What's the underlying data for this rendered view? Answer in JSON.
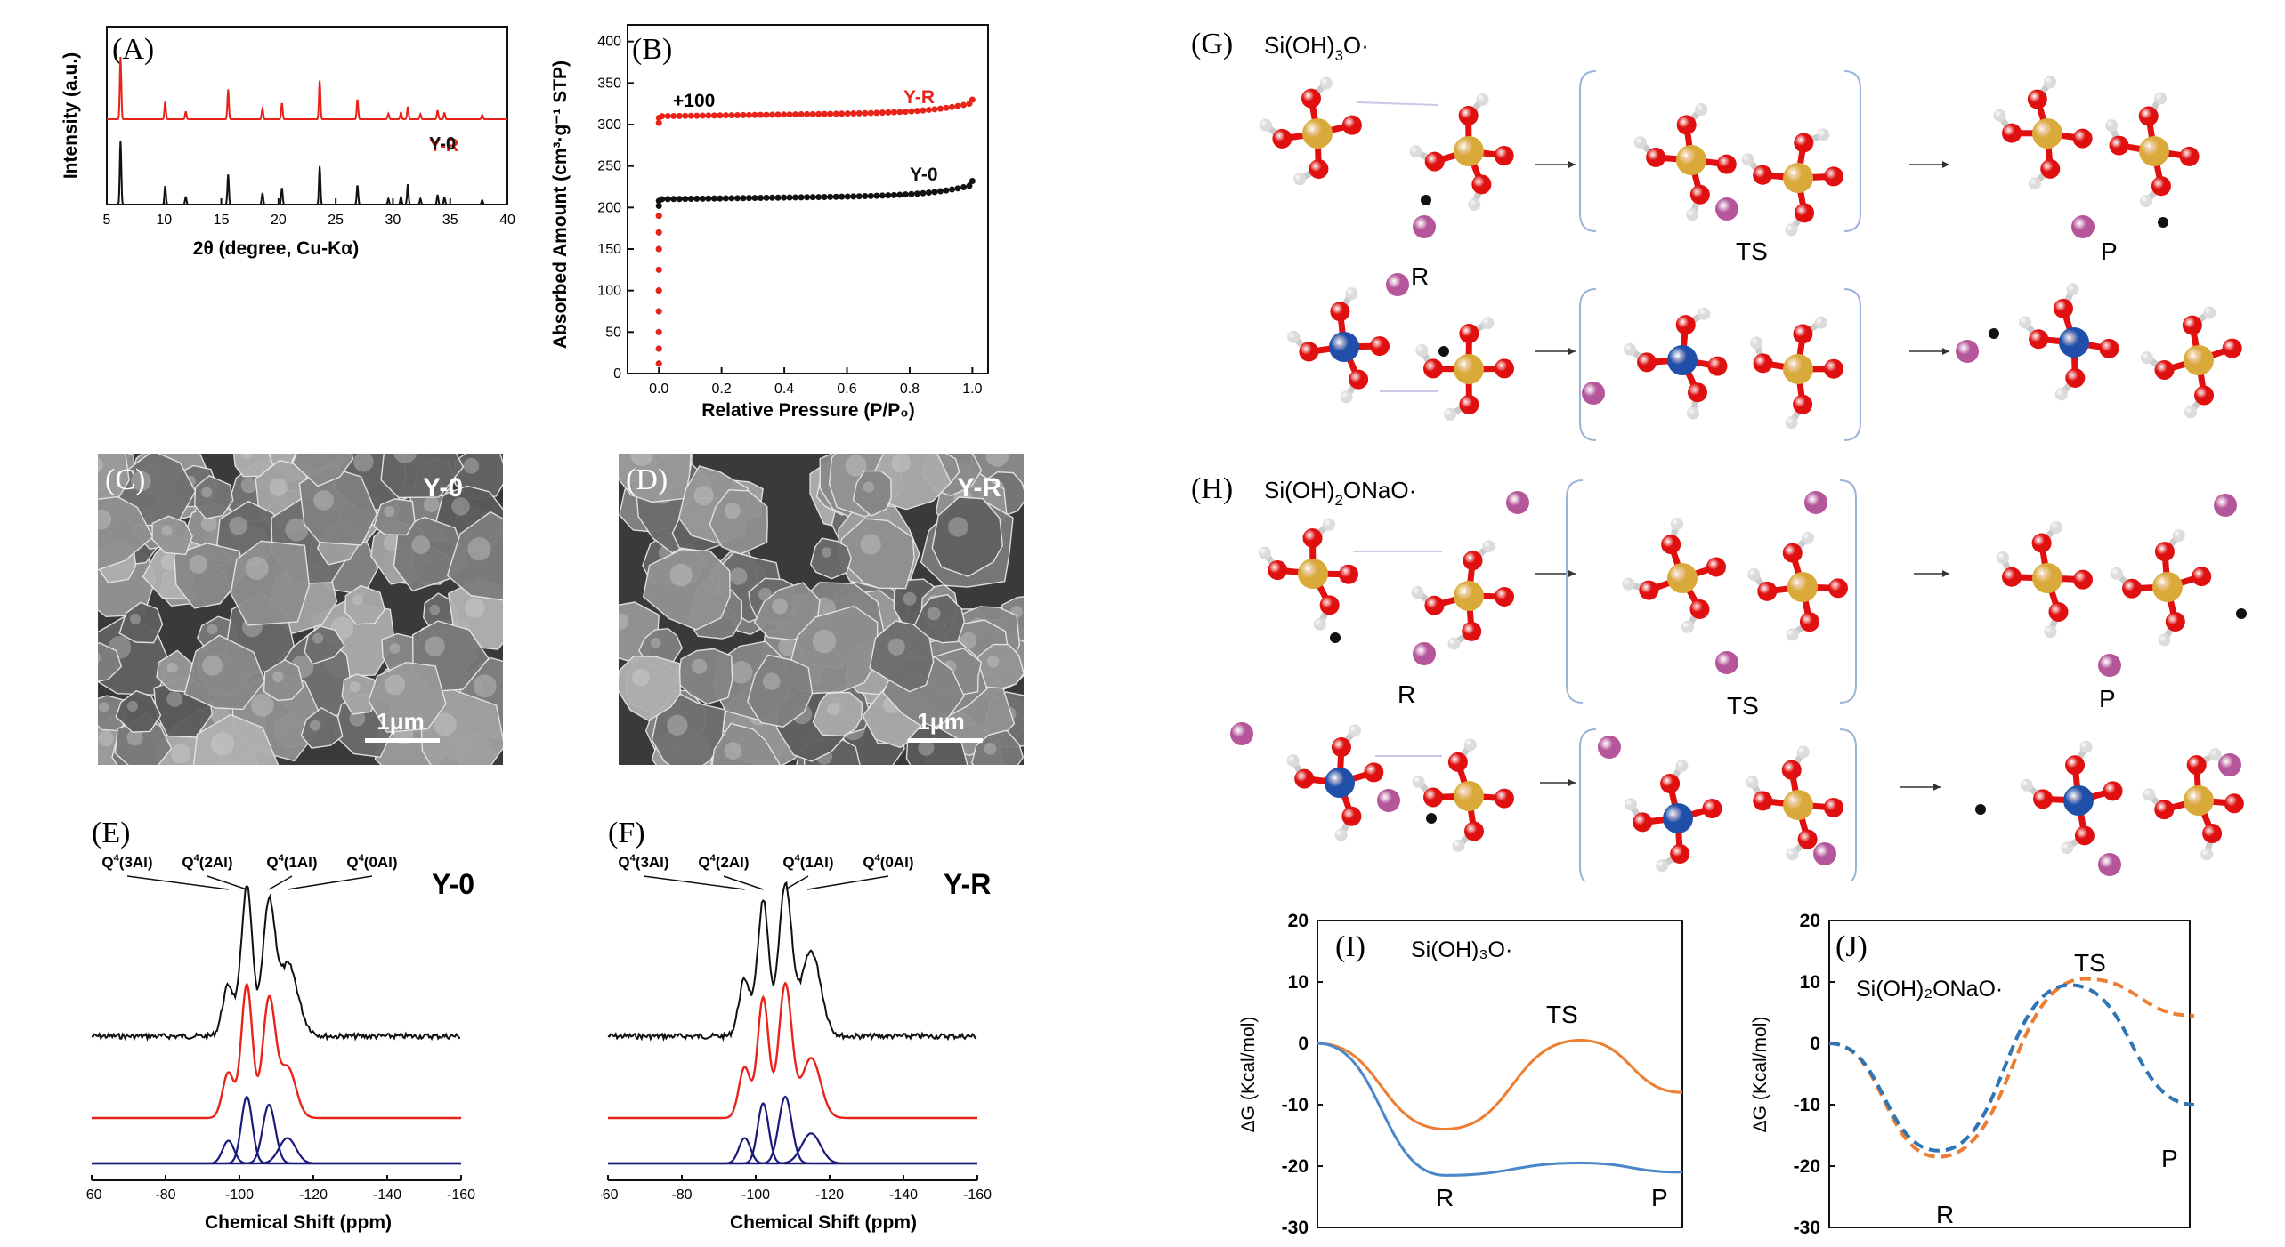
{
  "colors": {
    "red": "#e8231a",
    "black": "#111111",
    "navy": "#1a1a7a",
    "orange": "#ed7d31",
    "blue": "#4a86c8",
    "dashBlue": "#2e75b6",
    "gold": "#d9a93a",
    "oxygen": "#e01010",
    "hydrogen": "#dcdcdc",
    "aluminum": "#1f4fa8",
    "sodium": "#b5569a"
  },
  "panels": {
    "A": {
      "tag": "(A)"
    },
    "B": {
      "tag": "(B)"
    },
    "C": {
      "tag": "(C)"
    },
    "D": {
      "tag": "(D)"
    },
    "E": {
      "tag": "(E)"
    },
    "F": {
      "tag": "(F)"
    },
    "G": {
      "tag": "(G)"
    },
    "H": {
      "tag": "(H)"
    },
    "I": {
      "tag": "(I)"
    },
    "J": {
      "tag": "(J)"
    }
  },
  "sem": {
    "C": {
      "label": "Y-0",
      "scale": "1μm"
    },
    "D": {
      "label": "Y-R",
      "scale": "1μm"
    }
  },
  "mech": {
    "G": {
      "formula_main": "Si(OH)",
      "formula_sub": "3",
      "formula_end": "O·",
      "labels": [
        "R",
        "TS",
        "P"
      ]
    },
    "H": {
      "formula_main": "Si(OH)",
      "formula_sub": "2",
      "formula_end": "ONaO·",
      "labels": [
        "R",
        "TS",
        "P"
      ]
    }
  },
  "chart_data": [
    {
      "id": "A",
      "type": "line",
      "xlabel": "2θ (degree, Cu-Kα)",
      "ylabel": "Intensity (a.u.)",
      "xlim": [
        5,
        40
      ],
      "xticks": [
        "5",
        "10",
        "15",
        "20",
        "25",
        "30",
        "35",
        "40"
      ],
      "peaks_2theta": [
        6.2,
        10.1,
        11.9,
        15.6,
        18.6,
        20.3,
        23.6,
        26.9,
        29.6,
        30.7,
        31.3,
        32.4,
        33.9,
        34.5,
        37.8
      ],
      "series": [
        {
          "name": "Y-R",
          "rel_intensity": [
            1.0,
            0.28,
            0.12,
            0.48,
            0.17,
            0.26,
            0.62,
            0.32,
            0.09,
            0.11,
            0.2,
            0.08,
            0.14,
            0.1,
            0.07
          ]
        },
        {
          "name": "Y-0",
          "rel_intensity": [
            1.0,
            0.29,
            0.12,
            0.47,
            0.18,
            0.26,
            0.6,
            0.3,
            0.09,
            0.12,
            0.32,
            0.09,
            0.15,
            0.11,
            0.07
          ]
        }
      ]
    },
    {
      "id": "B",
      "type": "scatter",
      "xlabel": "Relative Pressure (P/P₀)",
      "ylabel": "Absorbed Amount (cm³·g⁻¹ STP)",
      "xlim": [
        -0.1,
        1.05
      ],
      "ylim": [
        0,
        420
      ],
      "xticks": [
        "0.0",
        "0.2",
        "0.4",
        "0.6",
        "0.8",
        "1.0"
      ],
      "yticks": [
        "0",
        "50",
        "100",
        "150",
        "200",
        "250",
        "300",
        "350",
        "400"
      ],
      "annotation": "+100",
      "series": [
        {
          "name": "Y-R",
          "offset": 100,
          "plateau": 310,
          "end": 330
        },
        {
          "name": "Y-0",
          "offset": 0,
          "plateau": 210,
          "end": 232
        }
      ]
    },
    {
      "id": "E",
      "type": "line",
      "title": "Y-0",
      "xlabel": "Chemical Shift (ppm)",
      "xlim": [
        -60,
        -160
      ],
      "xticks": [
        "-60",
        "-80",
        "-100",
        "-120",
        "-140",
        "-160"
      ],
      "peak_labels": [
        {
          "label": "Q",
          "sup": "4",
          "rest": "(3Al)",
          "ppm": -97
        },
        {
          "label": "Q",
          "sup": "4",
          "rest": "(2Al)",
          "ppm": -102
        },
        {
          "label": "Q",
          "sup": "4",
          "rest": "(1Al)",
          "ppm": -108
        },
        {
          "label": "Q",
          "sup": "4",
          "rest": "(0Al)",
          "ppm": -113
        }
      ],
      "components": [
        {
          "ppm": -97,
          "height": 0.34,
          "width": 2.2
        },
        {
          "ppm": -102,
          "height": 1.0,
          "width": 2.1
        },
        {
          "ppm": -108,
          "height": 0.88,
          "width": 2.4
        },
        {
          "ppm": -113,
          "height": 0.38,
          "width": 3.2
        }
      ]
    },
    {
      "id": "F",
      "type": "line",
      "title": "Y-R",
      "xlabel": "Chemical Shift (ppm)",
      "xlim": [
        -60,
        -160
      ],
      "xticks": [
        "-60",
        "-80",
        "-100",
        "-120",
        "-140",
        "-160"
      ],
      "peak_labels": [
        {
          "label": "Q",
          "sup": "4",
          "rest": "(3Al)",
          "ppm": -97
        },
        {
          "label": "Q",
          "sup": "4",
          "rest": "(2Al)",
          "ppm": -102
        },
        {
          "label": "Q",
          "sup": "4",
          "rest": "(1Al)",
          "ppm": -108
        },
        {
          "label": "Q",
          "sup": "4",
          "rest": "(0Al)",
          "ppm": -114
        }
      ],
      "components": [
        {
          "ppm": -97,
          "height": 0.38,
          "width": 2.2
        },
        {
          "ppm": -102,
          "height": 0.9,
          "width": 2.1
        },
        {
          "ppm": -108,
          "height": 1.0,
          "width": 2.5
        },
        {
          "ppm": -115,
          "height": 0.45,
          "width": 3.6
        }
      ]
    },
    {
      "id": "I",
      "type": "line",
      "title": "Si(OH)₃O·",
      "ylabel": "ΔG (Kcal/mol)",
      "ylim": [
        -30,
        20
      ],
      "yticks": [
        "20",
        "10",
        "0",
        "-10",
        "-20",
        "-30"
      ],
      "point_labels": [
        "R",
        "TS",
        "P"
      ],
      "series": [
        {
          "color": "orange",
          "points": [
            [
              0,
              0
            ],
            [
              0.35,
              -14
            ],
            [
              0.72,
              0.5
            ],
            [
              1,
              -8
            ]
          ]
        },
        {
          "color": "blue",
          "points": [
            [
              0,
              0
            ],
            [
              0.35,
              -21.5
            ],
            [
              0.72,
              -19.5
            ],
            [
              1,
              -21
            ]
          ]
        }
      ]
    },
    {
      "id": "J",
      "type": "line",
      "title": "Si(OH)₂ONaO·",
      "ylabel": "ΔG (Kcal/mol)",
      "ylim": [
        -30,
        20
      ],
      "yticks": [
        "20",
        "10",
        "0",
        "-10",
        "-20",
        "-30"
      ],
      "point_labels": [
        "TS",
        "R",
        "P"
      ],
      "series": [
        {
          "color": "orange",
          "dashed": true,
          "points": [
            [
              0,
              0
            ],
            [
              0.3,
              -18.5
            ],
            [
              0.7,
              10.5
            ],
            [
              1,
              4.5
            ]
          ]
        },
        {
          "color": "dashBlue",
          "dashed": true,
          "points": [
            [
              0,
              0
            ],
            [
              0.3,
              -17.5
            ],
            [
              0.66,
              9.5
            ],
            [
              1,
              -10
            ]
          ]
        }
      ]
    }
  ]
}
